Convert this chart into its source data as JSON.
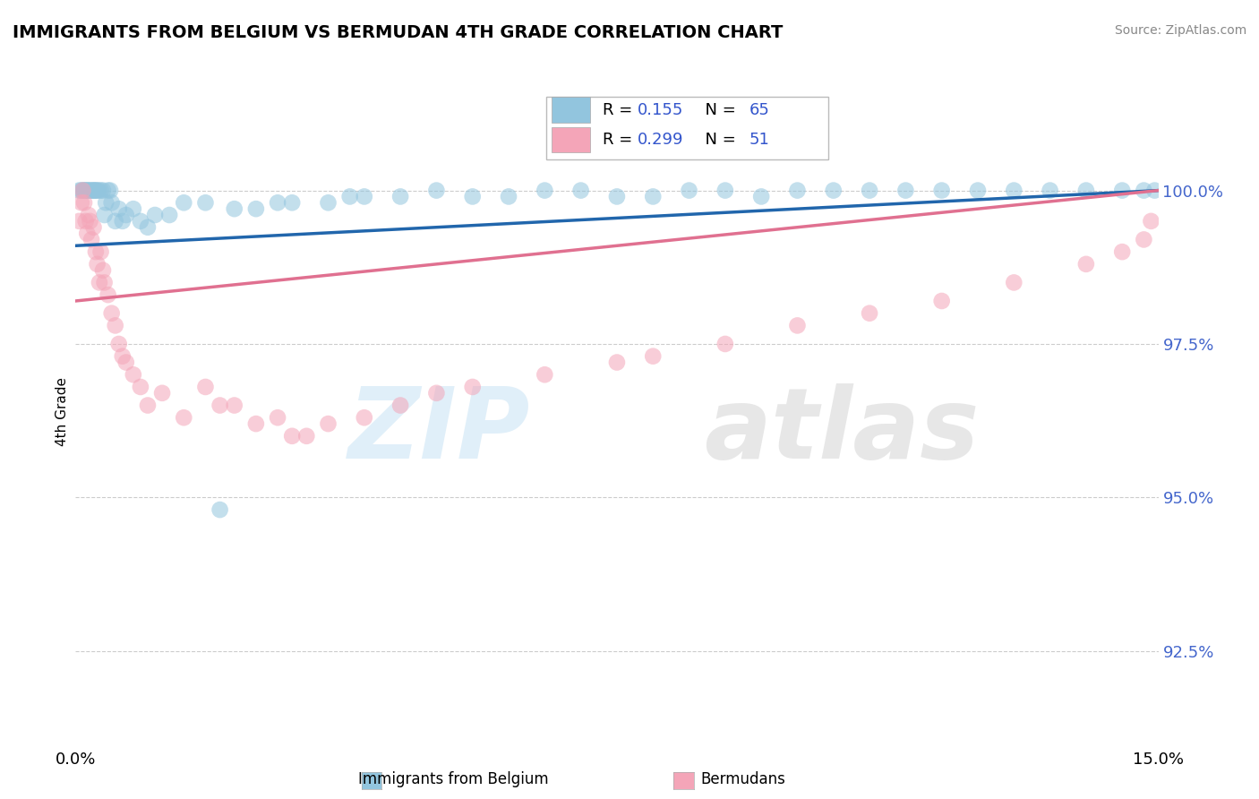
{
  "title": "IMMIGRANTS FROM BELGIUM VS BERMUDAN 4TH GRADE CORRELATION CHART",
  "source_text": "Source: ZipAtlas.com",
  "ylabel_left": "4th Grade",
  "x_min": 0.0,
  "x_max": 15.0,
  "y_min": 91.0,
  "y_max": 101.8,
  "right_yticks": [
    100.0,
    97.5,
    95.0,
    92.5
  ],
  "right_ytick_labels": [
    "100.0%",
    "97.5%",
    "95.0%",
    "92.5%"
  ],
  "x_tick_positions": [
    0.0,
    15.0
  ],
  "x_tick_labels": [
    "0.0%",
    "15.0%"
  ],
  "legend_label1": "Immigrants from Belgium",
  "legend_label2": "Bermudans",
  "R1": 0.155,
  "N1": 65,
  "R2": 0.299,
  "N2": 51,
  "color_blue": "#92c5de",
  "color_pink": "#f4a5b8",
  "color_blue_line": "#2166ac",
  "color_pink_line": "#e07090",
  "blue_points_x": [
    0.05,
    0.08,
    0.1,
    0.12,
    0.13,
    0.15,
    0.17,
    0.18,
    0.2,
    0.22,
    0.24,
    0.25,
    0.27,
    0.28,
    0.3,
    0.32,
    0.35,
    0.38,
    0.4,
    0.42,
    0.45,
    0.48,
    0.5,
    0.55,
    0.6,
    0.65,
    0.7,
    0.8,
    0.9,
    1.0,
    1.1,
    1.3,
    1.5,
    1.8,
    2.0,
    2.2,
    2.5,
    2.8,
    3.0,
    3.5,
    3.8,
    4.0,
    4.5,
    5.0,
    5.5,
    6.0,
    6.5,
    7.0,
    7.5,
    8.0,
    8.5,
    9.0,
    9.5,
    10.0,
    10.5,
    11.0,
    11.5,
    12.0,
    12.5,
    13.0,
    13.5,
    14.0,
    14.5,
    14.8,
    14.95
  ],
  "blue_points_y": [
    100.0,
    100.0,
    100.0,
    100.0,
    100.0,
    100.0,
    100.0,
    100.0,
    100.0,
    100.0,
    100.0,
    100.0,
    100.0,
    100.0,
    100.0,
    100.0,
    100.0,
    100.0,
    99.6,
    99.8,
    100.0,
    100.0,
    99.8,
    99.5,
    99.7,
    99.5,
    99.6,
    99.7,
    99.5,
    99.4,
    99.6,
    99.6,
    99.8,
    99.8,
    94.8,
    99.7,
    99.7,
    99.8,
    99.8,
    99.8,
    99.9,
    99.9,
    99.9,
    100.0,
    99.9,
    99.9,
    100.0,
    100.0,
    99.9,
    99.9,
    100.0,
    100.0,
    99.9,
    100.0,
    100.0,
    100.0,
    100.0,
    100.0,
    100.0,
    100.0,
    100.0,
    100.0,
    100.0,
    100.0,
    100.0
  ],
  "pink_points_x": [
    0.05,
    0.08,
    0.1,
    0.12,
    0.14,
    0.16,
    0.18,
    0.2,
    0.22,
    0.25,
    0.28,
    0.3,
    0.33,
    0.35,
    0.38,
    0.4,
    0.45,
    0.5,
    0.55,
    0.6,
    0.65,
    0.7,
    0.8,
    0.9,
    1.0,
    1.2,
    1.5,
    2.0,
    2.5,
    3.0,
    3.5,
    4.0,
    4.5,
    5.0,
    5.5,
    6.5,
    7.5,
    8.0,
    9.0,
    10.0,
    11.0,
    12.0,
    13.0,
    14.0,
    14.5,
    14.8,
    14.9,
    1.8,
    2.2,
    2.8,
    3.2
  ],
  "pink_points_y": [
    99.5,
    99.8,
    100.0,
    99.8,
    99.5,
    99.3,
    99.6,
    99.5,
    99.2,
    99.4,
    99.0,
    98.8,
    98.5,
    99.0,
    98.7,
    98.5,
    98.3,
    98.0,
    97.8,
    97.5,
    97.3,
    97.2,
    97.0,
    96.8,
    96.5,
    96.7,
    96.3,
    96.5,
    96.2,
    96.0,
    96.2,
    96.3,
    96.5,
    96.7,
    96.8,
    97.0,
    97.2,
    97.3,
    97.5,
    97.8,
    98.0,
    98.2,
    98.5,
    98.8,
    99.0,
    99.2,
    99.5,
    96.8,
    96.5,
    96.3,
    96.0
  ],
  "blue_line_x0": 0.0,
  "blue_line_y0": 99.1,
  "blue_line_x1": 15.0,
  "blue_line_y1": 100.0,
  "pink_line_x0": 0.0,
  "pink_line_y0": 98.2,
  "pink_line_x1": 15.0,
  "pink_line_y1": 100.0
}
